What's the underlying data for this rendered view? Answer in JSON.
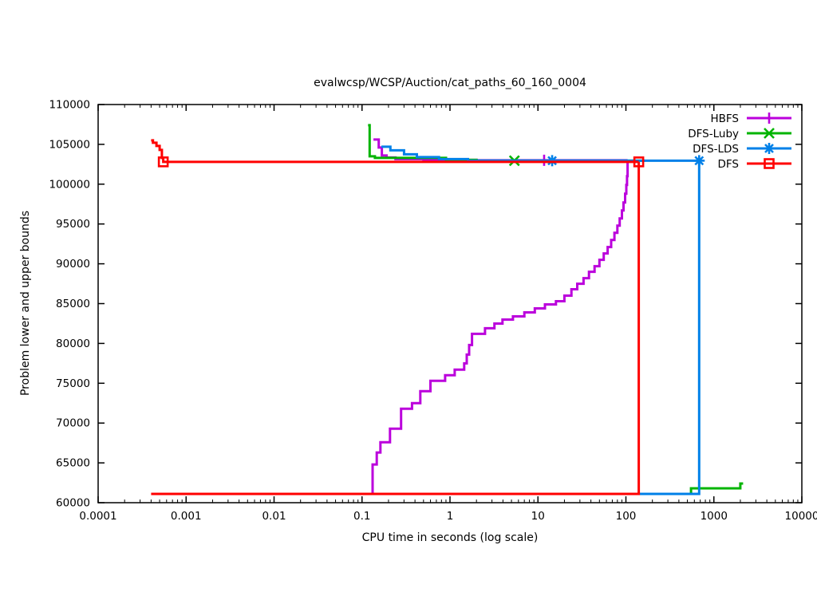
{
  "chart_data": {
    "type": "line",
    "title": "evalwcsp/WCSP/Auction/cat_paths_60_160_0004",
    "xlabel": "CPU time in seconds (log scale)",
    "ylabel": "Problem lower and upper bounds",
    "x_scale": "log",
    "xlim": [
      0.0001,
      10000
    ],
    "ylim": [
      60000,
      110000
    ],
    "grid": false,
    "legend_position": "top-right-inside",
    "x_ticks": [
      {
        "v": 0.0001,
        "label": "0.0001"
      },
      {
        "v": 0.001,
        "label": "0.001"
      },
      {
        "v": 0.01,
        "label": "0.01"
      },
      {
        "v": 0.1,
        "label": "0.1"
      },
      {
        "v": 1,
        "label": "1"
      },
      {
        "v": 10,
        "label": "10"
      },
      {
        "v": 100,
        "label": "100"
      },
      {
        "v": 1000,
        "label": "1000"
      },
      {
        "v": 10000,
        "label": "10000"
      }
    ],
    "y_ticks": [
      {
        "v": 60000,
        "label": "60000"
      },
      {
        "v": 65000,
        "label": "65000"
      },
      {
        "v": 70000,
        "label": "70000"
      },
      {
        "v": 75000,
        "label": "75000"
      },
      {
        "v": 80000,
        "label": "80000"
      },
      {
        "v": 85000,
        "label": "85000"
      },
      {
        "v": 90000,
        "label": "90000"
      },
      {
        "v": 95000,
        "label": "95000"
      },
      {
        "v": 100000,
        "label": "100000"
      },
      {
        "v": 105000,
        "label": "105000"
      },
      {
        "v": 110000,
        "label": "110000"
      }
    ],
    "series": [
      {
        "name": "HBFS",
        "color": "#BB00DC",
        "marker": "plus",
        "upper_bound": [
          [
            0.135,
            105600
          ],
          [
            0.155,
            105600
          ],
          [
            0.155,
            104600
          ],
          [
            0.168,
            104600
          ],
          [
            0.168,
            103600
          ],
          [
            0.19,
            103600
          ],
          [
            0.19,
            103350
          ],
          [
            0.24,
            103350
          ],
          [
            0.24,
            103150
          ],
          [
            0.5,
            103150
          ],
          [
            0.5,
            103050
          ],
          [
            2,
            103050
          ],
          [
            2,
            103000
          ],
          [
            104.5,
            103000
          ]
        ],
        "lower_bound": [
          [
            0.132,
            61100
          ],
          [
            0.132,
            64800
          ],
          [
            0.147,
            64800
          ],
          [
            0.147,
            66300
          ],
          [
            0.162,
            66300
          ],
          [
            0.162,
            67600
          ],
          [
            0.208,
            67600
          ],
          [
            0.208,
            69300
          ],
          [
            0.278,
            69300
          ],
          [
            0.278,
            71800
          ],
          [
            0.37,
            71800
          ],
          [
            0.37,
            72500
          ],
          [
            0.46,
            72500
          ],
          [
            0.46,
            74000
          ],
          [
            0.6,
            74000
          ],
          [
            0.6,
            75300
          ],
          [
            0.88,
            75300
          ],
          [
            0.88,
            76000
          ],
          [
            1.13,
            76000
          ],
          [
            1.13,
            76700
          ],
          [
            1.45,
            76700
          ],
          [
            1.45,
            77500
          ],
          [
            1.55,
            77500
          ],
          [
            1.55,
            78600
          ],
          [
            1.65,
            78600
          ],
          [
            1.65,
            79800
          ],
          [
            1.78,
            79800
          ],
          [
            1.78,
            81200
          ],
          [
            2.5,
            81200
          ],
          [
            2.5,
            81900
          ],
          [
            3.2,
            81900
          ],
          [
            3.2,
            82500
          ],
          [
            3.95,
            82500
          ],
          [
            3.95,
            83000
          ],
          [
            5.2,
            83000
          ],
          [
            5.2,
            83400
          ],
          [
            7,
            83400
          ],
          [
            7,
            83900
          ],
          [
            9.2,
            83900
          ],
          [
            9.2,
            84400
          ],
          [
            12,
            84400
          ],
          [
            12,
            84900
          ],
          [
            16,
            84900
          ],
          [
            16,
            85300
          ],
          [
            20,
            85300
          ],
          [
            20,
            86000
          ],
          [
            24,
            86000
          ],
          [
            24,
            86800
          ],
          [
            28,
            86800
          ],
          [
            28,
            87500
          ],
          [
            33,
            87500
          ],
          [
            33,
            88200
          ],
          [
            38,
            88200
          ],
          [
            38,
            89000
          ],
          [
            44,
            89000
          ],
          [
            44,
            89700
          ],
          [
            50,
            89700
          ],
          [
            50,
            90500
          ],
          [
            56,
            90500
          ],
          [
            56,
            91300
          ],
          [
            62,
            91300
          ],
          [
            62,
            92100
          ],
          [
            68,
            92100
          ],
          [
            68,
            93000
          ],
          [
            74,
            93000
          ],
          [
            74,
            93900
          ],
          [
            80,
            93900
          ],
          [
            80,
            94800
          ],
          [
            85,
            94800
          ],
          [
            85,
            95700
          ],
          [
            90,
            95700
          ],
          [
            90,
            96700
          ],
          [
            94,
            96700
          ],
          [
            94,
            97700
          ],
          [
            98,
            97700
          ],
          [
            98,
            98800
          ],
          [
            101,
            98800
          ],
          [
            101,
            99900
          ],
          [
            103,
            99900
          ],
          [
            103,
            101000
          ],
          [
            104.5,
            101000
          ],
          [
            104.5,
            103000
          ]
        ],
        "marker_points": [
          [
            11.75,
            103000
          ]
        ]
      },
      {
        "name": "DFS-Luby",
        "color": "#00B400",
        "marker": "cross",
        "upper_bound": [
          [
            0.117,
            107400
          ],
          [
            0.122,
            107400
          ],
          [
            0.122,
            103500
          ],
          [
            0.14,
            103500
          ],
          [
            0.14,
            103300
          ],
          [
            0.9,
            103300
          ],
          [
            0.9,
            103050
          ],
          [
            2,
            103050
          ],
          [
            2,
            102950
          ],
          [
            165,
            102950
          ]
        ],
        "lower_bound": [
          [
            0.117,
            61100
          ],
          [
            550,
            61100
          ],
          [
            550,
            61800
          ],
          [
            2000,
            61800
          ],
          [
            2000,
            62400
          ],
          [
            2150,
            62400
          ]
        ],
        "marker_points": [
          [
            5.4,
            102950
          ]
        ]
      },
      {
        "name": "DFS-LDS",
        "color": "#0080E8",
        "marker": "asterisk",
        "upper_bound": [
          [
            0.166,
            104700
          ],
          [
            0.21,
            104700
          ],
          [
            0.21,
            104250
          ],
          [
            0.3,
            104250
          ],
          [
            0.3,
            103750
          ],
          [
            0.42,
            103750
          ],
          [
            0.42,
            103400
          ],
          [
            0.75,
            103400
          ],
          [
            0.75,
            103150
          ],
          [
            1.6,
            103150
          ],
          [
            1.6,
            102950
          ],
          [
            680,
            102950
          ]
        ],
        "lower_bound": [
          [
            0.166,
            61100
          ],
          [
            680,
            61100
          ],
          [
            680,
            102950
          ]
        ],
        "marker_points": [
          [
            14.5,
            102950
          ],
          [
            680,
            102950
          ]
        ]
      },
      {
        "name": "DFS",
        "color": "#FF0000",
        "marker": "square",
        "upper_bound": [
          [
            0.0004,
            105500
          ],
          [
            0.00042,
            105500
          ],
          [
            0.00042,
            105200
          ],
          [
            0.00046,
            105200
          ],
          [
            0.00046,
            104800
          ],
          [
            0.0005,
            104800
          ],
          [
            0.0005,
            104300
          ],
          [
            0.00053,
            104300
          ],
          [
            0.00053,
            103300
          ],
          [
            0.00055,
            103300
          ],
          [
            0.00055,
            102800
          ],
          [
            140,
            102800
          ]
        ],
        "lower_bound": [
          [
            0.0004,
            61100
          ],
          [
            140,
            61100
          ],
          [
            140,
            102800
          ]
        ],
        "marker_points": [
          [
            0.00055,
            102800
          ],
          [
            140,
            102800
          ]
        ]
      }
    ]
  }
}
